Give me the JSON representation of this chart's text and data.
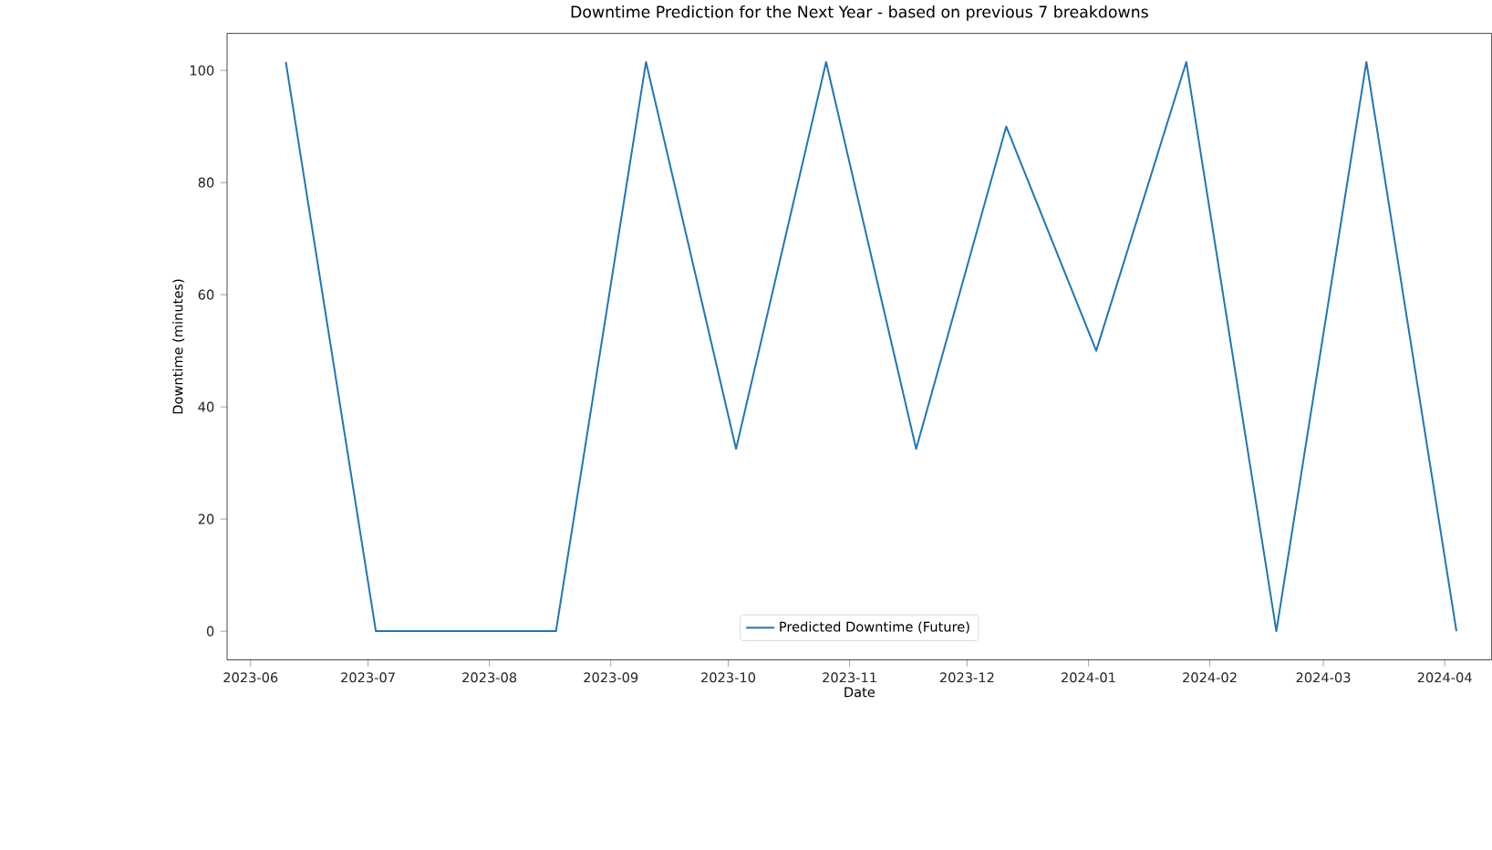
{
  "chart_data": {
    "type": "line",
    "title": "Downtime Prediction for the Next Year - based on previous 7 breakdowns",
    "xlabel": "Date",
    "ylabel": "Downtime (minutes)",
    "x": [
      "2023-06-10",
      "2023-07-03",
      "2023-07-26",
      "2023-08-18",
      "2023-09-10",
      "2023-10-03",
      "2023-10-26",
      "2023-11-18",
      "2023-12-11",
      "2024-01-03",
      "2024-01-26",
      "2024-02-18",
      "2024-03-12",
      "2024-04-04"
    ],
    "series": [
      {
        "name": "Predicted Downtime (Future)",
        "color": "#1f77b4",
        "values": [
          101.5,
          0,
          0,
          0,
          101.5,
          32.5,
          101.5,
          32.5,
          90,
          50,
          101.5,
          0,
          101.5,
          0
        ]
      }
    ],
    "xlim": [
      "2023-05-26",
      "2024-04-13"
    ],
    "xticks": [
      {
        "value": "2023-06",
        "label": "2023-06"
      },
      {
        "value": "2023-07",
        "label": "2023-07"
      },
      {
        "value": "2023-08",
        "label": "2023-08"
      },
      {
        "value": "2023-09",
        "label": "2023-09"
      },
      {
        "value": "2023-10",
        "label": "2023-10"
      },
      {
        "value": "2023-11",
        "label": "2023-11"
      },
      {
        "value": "2023-12",
        "label": "2023-12"
      },
      {
        "value": "2024-01",
        "label": "2024-01"
      },
      {
        "value": "2024-02",
        "label": "2024-02"
      },
      {
        "value": "2024-03",
        "label": "2024-03"
      },
      {
        "value": "2024-04",
        "label": "2024-04"
      }
    ],
    "ylim": [
      -5.1,
      106.6
    ],
    "yticks": [
      0,
      20,
      40,
      60,
      80,
      100
    ],
    "legend": "bottom",
    "grid": false
  }
}
